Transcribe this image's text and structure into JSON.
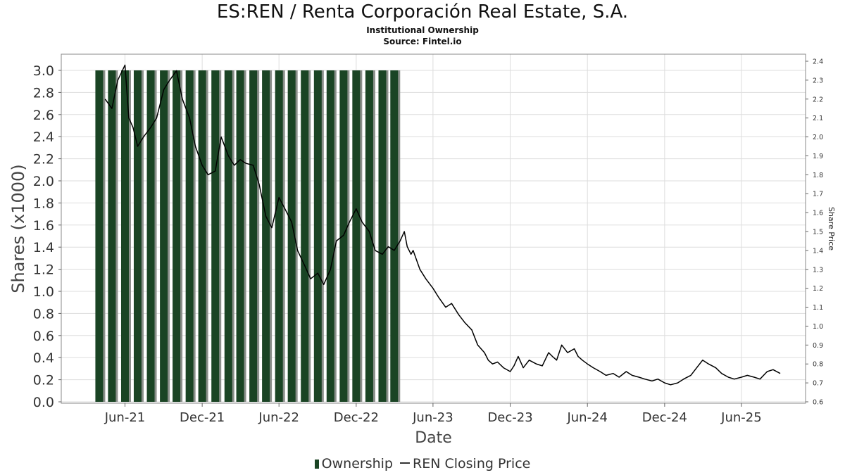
{
  "header": {
    "title": "ES:REN / Renta Corporación Real Estate, S.A.",
    "subtitle1": "Institutional Ownership",
    "subtitle2": "Source: Fintel.io"
  },
  "legend": {
    "ownership_label": "Ownership",
    "price_label": "REN Closing Price"
  },
  "colors": {
    "bar_fill": "#1a4424",
    "bar_shadow": "#8a8f8a",
    "price_line": "#000000",
    "grid": "#dddddd"
  },
  "chart_data": {
    "type": "bar",
    "title": "ES:REN / Renta Corporación Real Estate, S.A.",
    "subtitle": "Institutional Ownership",
    "xlabel": "Date",
    "ylabel": "Shares (x1000)",
    "y2label": "Share Price",
    "ylim": [
      0,
      3.0
    ],
    "yticks": [
      "0.0",
      "0.2",
      "0.4",
      "0.6",
      "0.8",
      "1.0",
      "1.2",
      "1.4",
      "1.6",
      "1.8",
      "2.0",
      "2.2",
      "2.4",
      "2.6",
      "2.8",
      "3.0"
    ],
    "y2lim": [
      0.6,
      2.4
    ],
    "y2ticks": [
      "0.6",
      "0.7",
      "0.8",
      "0.9",
      "1.0",
      "1.1",
      "1.2",
      "1.3",
      "1.4",
      "1.5",
      "1.6",
      "1.7",
      "1.8",
      "1.9",
      "2.0",
      "2.1",
      "2.2",
      "2.3",
      "2.4"
    ],
    "xlim": [
      "2021-01-01",
      "2025-10-31"
    ],
    "xticks": [
      {
        "label": "Jun-21",
        "date": "2021-06-01"
      },
      {
        "label": "Dec-21",
        "date": "2021-12-01"
      },
      {
        "label": "Jun-22",
        "date": "2022-06-01"
      },
      {
        "label": "Dec-22",
        "date": "2022-12-01"
      },
      {
        "label": "Jun-23",
        "date": "2023-06-01"
      },
      {
        "label": "Dec-23",
        "date": "2023-12-01"
      },
      {
        "label": "Jun-24",
        "date": "2024-06-01"
      },
      {
        "label": "Dec-24",
        "date": "2024-12-01"
      },
      {
        "label": "Jun-25",
        "date": "2025-06-01"
      }
    ],
    "grid": true,
    "legend_position": "bottom",
    "series": [
      {
        "name": "Ownership",
        "kind": "bar",
        "axis": "left",
        "x": [
          "2021-04-01",
          "2021-05-01",
          "2021-06-01",
          "2021-07-01",
          "2021-08-01",
          "2021-09-01",
          "2021-10-01",
          "2021-11-01",
          "2021-12-01",
          "2022-01-01",
          "2022-02-01",
          "2022-03-01",
          "2022-04-01",
          "2022-05-01",
          "2022-06-01",
          "2022-07-01",
          "2022-08-01",
          "2022-09-01",
          "2022-10-01",
          "2022-11-01",
          "2022-12-01",
          "2023-01-01",
          "2023-02-01",
          "2023-03-01"
        ],
        "values": [
          3.0,
          3.0,
          3.0,
          3.0,
          3.0,
          3.0,
          3.0,
          3.0,
          3.0,
          3.0,
          3.0,
          3.0,
          3.0,
          3.0,
          3.0,
          3.0,
          3.0,
          3.0,
          3.0,
          3.0,
          3.0,
          3.0,
          3.0,
          3.0
        ]
      },
      {
        "name": "REN Closing Price",
        "kind": "line",
        "axis": "right",
        "x": [
          "2021-04-15",
          "2021-05-01",
          "2021-05-15",
          "2021-06-01",
          "2021-06-10",
          "2021-06-20",
          "2021-07-01",
          "2021-07-15",
          "2021-08-01",
          "2021-08-15",
          "2021-09-01",
          "2021-09-15",
          "2021-10-01",
          "2021-10-15",
          "2021-11-01",
          "2021-11-15",
          "2021-12-01",
          "2021-12-15",
          "2022-01-01",
          "2022-01-15",
          "2022-02-01",
          "2022-02-15",
          "2022-03-01",
          "2022-03-15",
          "2022-04-01",
          "2022-04-15",
          "2022-05-01",
          "2022-05-15",
          "2022-06-01",
          "2022-06-15",
          "2022-07-01",
          "2022-07-15",
          "2022-08-01",
          "2022-08-15",
          "2022-09-01",
          "2022-09-15",
          "2022-10-01",
          "2022-10-15",
          "2022-11-01",
          "2022-11-15",
          "2022-12-01",
          "2022-12-15",
          "2023-01-01",
          "2023-01-15",
          "2023-02-01",
          "2023-02-15",
          "2023-03-01",
          "2023-03-15",
          "2023-03-25",
          "2023-04-01",
          "2023-04-10",
          "2023-04-15",
          "2023-05-01",
          "2023-05-15",
          "2023-06-01",
          "2023-06-15",
          "2023-07-01",
          "2023-07-15",
          "2023-08-01",
          "2023-08-15",
          "2023-09-01",
          "2023-09-15",
          "2023-10-01",
          "2023-10-10",
          "2023-10-20",
          "2023-11-01",
          "2023-11-15",
          "2023-12-01",
          "2023-12-10",
          "2023-12-20",
          "2024-01-01",
          "2024-01-15",
          "2024-02-01",
          "2024-02-15",
          "2024-03-01",
          "2024-03-10",
          "2024-03-20",
          "2024-04-01",
          "2024-04-15",
          "2024-05-01",
          "2024-05-10",
          "2024-05-20",
          "2024-06-01",
          "2024-06-15",
          "2024-07-01",
          "2024-07-15",
          "2024-08-01",
          "2024-08-15",
          "2024-09-01",
          "2024-09-15",
          "2024-10-01",
          "2024-10-15",
          "2024-11-01",
          "2024-11-15",
          "2024-12-01",
          "2024-12-15",
          "2025-01-01",
          "2025-01-15",
          "2025-02-01",
          "2025-02-15",
          "2025-03-01",
          "2025-03-15",
          "2025-04-01",
          "2025-04-15",
          "2025-05-01",
          "2025-05-15",
          "2025-06-01",
          "2025-06-15",
          "2025-07-01",
          "2025-07-15",
          "2025-08-01",
          "2025-08-15",
          "2025-09-01"
        ],
        "values": [
          2.2,
          2.15,
          2.3,
          2.38,
          2.1,
          2.05,
          1.95,
          2.0,
          2.05,
          2.1,
          2.25,
          2.3,
          2.35,
          2.2,
          2.1,
          1.95,
          1.85,
          1.8,
          1.82,
          2.0,
          1.9,
          1.85,
          1.88,
          1.86,
          1.85,
          1.75,
          1.58,
          1.52,
          1.68,
          1.62,
          1.55,
          1.4,
          1.32,
          1.25,
          1.28,
          1.22,
          1.3,
          1.45,
          1.48,
          1.55,
          1.62,
          1.55,
          1.5,
          1.4,
          1.38,
          1.42,
          1.4,
          1.45,
          1.5,
          1.42,
          1.38,
          1.4,
          1.3,
          1.25,
          1.2,
          1.15,
          1.1,
          1.12,
          1.06,
          1.02,
          0.98,
          0.9,
          0.86,
          0.82,
          0.8,
          0.81,
          0.78,
          0.76,
          0.79,
          0.84,
          0.78,
          0.82,
          0.8,
          0.79,
          0.86,
          0.84,
          0.82,
          0.9,
          0.86,
          0.88,
          0.84,
          0.82,
          0.8,
          0.78,
          0.76,
          0.74,
          0.75,
          0.73,
          0.76,
          0.74,
          0.73,
          0.72,
          0.71,
          0.72,
          0.7,
          0.69,
          0.7,
          0.72,
          0.74,
          0.78,
          0.82,
          0.8,
          0.78,
          0.75,
          0.73,
          0.72,
          0.73,
          0.74,
          0.73,
          0.72,
          0.76,
          0.77,
          0.75
        ]
      }
    ]
  }
}
